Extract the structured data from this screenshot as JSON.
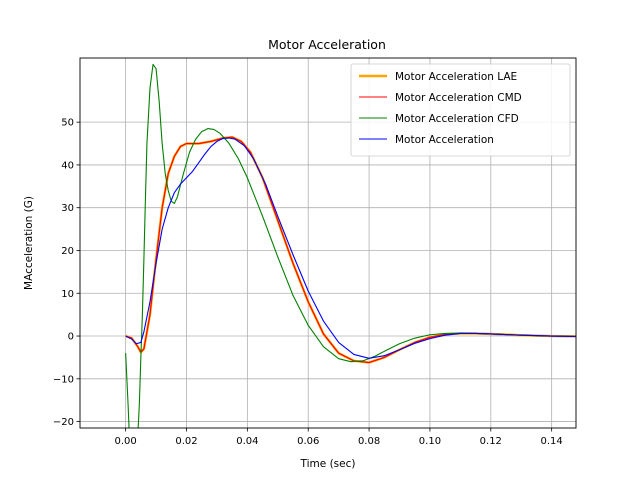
{
  "chart_data": {
    "type": "line",
    "title": "Motor Acceleration",
    "xlabel": "Time (sec)",
    "ylabel": "MAcceleration (G)",
    "xlim": [
      -0.015,
      0.148
    ],
    "ylim": [
      -21.5,
      65
    ],
    "xticks": [
      0.0,
      0.02,
      0.04,
      0.06,
      0.08,
      0.1,
      0.12,
      0.14
    ],
    "xtick_labels": [
      "0.00",
      "0.02",
      "0.04",
      "0.06",
      "0.08",
      "0.10",
      "0.12",
      "0.14"
    ],
    "yticks": [
      -20,
      -10,
      0,
      10,
      20,
      30,
      40,
      50
    ],
    "ytick_labels": [
      "−20",
      "−10",
      "0",
      "10",
      "20",
      "30",
      "40",
      "50"
    ],
    "grid": true,
    "legend_position": "top-right",
    "series": [
      {
        "name": "Motor Acceleration LAE",
        "color": "#ffa500",
        "points": [
          [
            0.0,
            0
          ],
          [
            0.002,
            -0.5
          ],
          [
            0.004,
            -2.5
          ],
          [
            0.005,
            -3.8
          ],
          [
            0.006,
            -3.0
          ],
          [
            0.008,
            5
          ],
          [
            0.01,
            18
          ],
          [
            0.012,
            30
          ],
          [
            0.014,
            38
          ],
          [
            0.016,
            42
          ],
          [
            0.018,
            44.3
          ],
          [
            0.02,
            45
          ],
          [
            0.024,
            45
          ],
          [
            0.028,
            45.5
          ],
          [
            0.032,
            46.3
          ],
          [
            0.035,
            46.5
          ],
          [
            0.038,
            45.5
          ],
          [
            0.041,
            43
          ],
          [
            0.045,
            37
          ],
          [
            0.05,
            27
          ],
          [
            0.055,
            17
          ],
          [
            0.06,
            8
          ],
          [
            0.065,
            0.5
          ],
          [
            0.07,
            -4
          ],
          [
            0.075,
            -5.8
          ],
          [
            0.08,
            -6.2
          ],
          [
            0.085,
            -5
          ],
          [
            0.09,
            -3.2
          ],
          [
            0.095,
            -1.5
          ],
          [
            0.1,
            -0.3
          ],
          [
            0.105,
            0.4
          ],
          [
            0.11,
            0.6
          ],
          [
            0.115,
            0.6
          ],
          [
            0.12,
            0.5
          ],
          [
            0.13,
            0.2
          ],
          [
            0.14,
            0
          ],
          [
            0.148,
            -0.1
          ]
        ]
      },
      {
        "name": "Motor Acceleration CMD",
        "color": "#ff0000",
        "points": [
          [
            0.0,
            0
          ],
          [
            0.002,
            -0.5
          ],
          [
            0.004,
            -2.5
          ],
          [
            0.005,
            -3.8
          ],
          [
            0.006,
            -3.0
          ],
          [
            0.008,
            5
          ],
          [
            0.01,
            18
          ],
          [
            0.012,
            30
          ],
          [
            0.014,
            38
          ],
          [
            0.016,
            42
          ],
          [
            0.018,
            44.3
          ],
          [
            0.02,
            45
          ],
          [
            0.024,
            45
          ],
          [
            0.028,
            45.5
          ],
          [
            0.032,
            46.3
          ],
          [
            0.035,
            46.5
          ],
          [
            0.038,
            45.5
          ],
          [
            0.041,
            43
          ],
          [
            0.045,
            37
          ],
          [
            0.05,
            27
          ],
          [
            0.055,
            17
          ],
          [
            0.06,
            8
          ],
          [
            0.065,
            0.5
          ],
          [
            0.07,
            -4
          ],
          [
            0.075,
            -5.8
          ],
          [
            0.08,
            -6.2
          ],
          [
            0.085,
            -5
          ],
          [
            0.09,
            -3.2
          ],
          [
            0.095,
            -1.5
          ],
          [
            0.1,
            -0.3
          ],
          [
            0.105,
            0.4
          ],
          [
            0.11,
            0.6
          ],
          [
            0.115,
            0.6
          ],
          [
            0.12,
            0.5
          ],
          [
            0.13,
            0.2
          ],
          [
            0.14,
            0
          ],
          [
            0.148,
            -0.1
          ]
        ]
      },
      {
        "name": "Motor Acceleration CFD",
        "color": "#008000",
        "points": [
          [
            0.0,
            -4
          ],
          [
            0.0008,
            -16
          ],
          [
            0.0012,
            -23
          ],
          [
            0.004,
            -23
          ],
          [
            0.0045,
            -16
          ],
          [
            0.005,
            -5
          ],
          [
            0.0055,
            5
          ],
          [
            0.006,
            18
          ],
          [
            0.0065,
            32
          ],
          [
            0.007,
            45
          ],
          [
            0.008,
            58
          ],
          [
            0.009,
            63.5
          ],
          [
            0.01,
            62.5
          ],
          [
            0.011,
            55
          ],
          [
            0.012,
            45
          ],
          [
            0.013,
            38
          ],
          [
            0.014,
            34
          ],
          [
            0.015,
            31.5
          ],
          [
            0.016,
            31
          ],
          [
            0.017,
            32.5
          ],
          [
            0.019,
            38
          ],
          [
            0.021,
            43
          ],
          [
            0.023,
            46
          ],
          [
            0.025,
            47.8
          ],
          [
            0.027,
            48.5
          ],
          [
            0.029,
            48.3
          ],
          [
            0.031,
            47.4
          ],
          [
            0.034,
            45
          ],
          [
            0.037,
            41.5
          ],
          [
            0.04,
            37
          ],
          [
            0.045,
            28
          ],
          [
            0.05,
            18.5
          ],
          [
            0.055,
            9.5
          ],
          [
            0.06,
            2.5
          ],
          [
            0.065,
            -2.5
          ],
          [
            0.07,
            -5.3
          ],
          [
            0.074,
            -6
          ],
          [
            0.078,
            -5.8
          ],
          [
            0.082,
            -4.7
          ],
          [
            0.086,
            -3.2
          ],
          [
            0.09,
            -1.8
          ],
          [
            0.095,
            -0.5
          ],
          [
            0.1,
            0.3
          ],
          [
            0.105,
            0.6
          ],
          [
            0.11,
            0.7
          ],
          [
            0.115,
            0.6
          ],
          [
            0.12,
            0.5
          ],
          [
            0.13,
            0.2
          ],
          [
            0.14,
            0
          ],
          [
            0.148,
            -0.1
          ]
        ]
      },
      {
        "name": "Motor Acceleration",
        "color": "#0000ff",
        "points": [
          [
            0.0,
            0
          ],
          [
            0.002,
            -0.7
          ],
          [
            0.0035,
            -1.8
          ],
          [
            0.005,
            -1.5
          ],
          [
            0.006,
            1
          ],
          [
            0.008,
            8
          ],
          [
            0.01,
            17
          ],
          [
            0.012,
            25
          ],
          [
            0.014,
            30
          ],
          [
            0.016,
            33.5
          ],
          [
            0.018,
            35.5
          ],
          [
            0.02,
            37
          ],
          [
            0.022,
            38.5
          ],
          [
            0.024,
            40.5
          ],
          [
            0.026,
            42.5
          ],
          [
            0.028,
            44.3
          ],
          [
            0.03,
            45.5
          ],
          [
            0.032,
            46.2
          ],
          [
            0.034,
            46.3
          ],
          [
            0.036,
            46
          ],
          [
            0.039,
            44.5
          ],
          [
            0.042,
            41.5
          ],
          [
            0.046,
            35.5
          ],
          [
            0.05,
            28
          ],
          [
            0.055,
            19
          ],
          [
            0.06,
            10.5
          ],
          [
            0.065,
            3.5
          ],
          [
            0.07,
            -1.5
          ],
          [
            0.075,
            -4.3
          ],
          [
            0.08,
            -5.2
          ],
          [
            0.085,
            -4.6
          ],
          [
            0.09,
            -3.2
          ],
          [
            0.095,
            -1.7
          ],
          [
            0.1,
            -0.6
          ],
          [
            0.105,
            0.2
          ],
          [
            0.11,
            0.6
          ],
          [
            0.115,
            0.6
          ],
          [
            0.12,
            0.5
          ],
          [
            0.13,
            0.2
          ],
          [
            0.14,
            0
          ],
          [
            0.148,
            -0.1
          ]
        ]
      }
    ]
  }
}
